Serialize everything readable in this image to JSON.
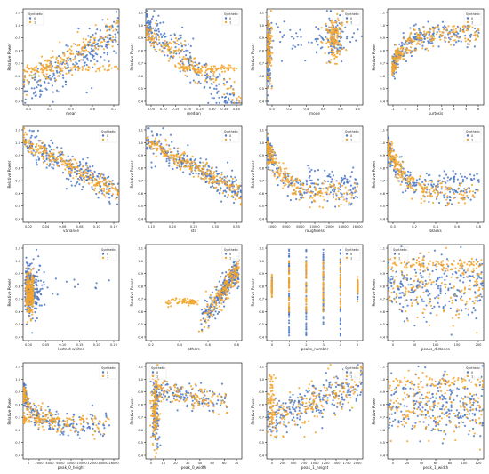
{
  "figure": {
    "colors": {
      "series_0": "#4c78c4",
      "series_1": "#f3a52b"
    },
    "legend_title": "Synthetic",
    "legend_labels": [
      "0",
      "1"
    ],
    "ylabel": "Relative Power"
  },
  "chart_data": [
    {
      "type": "scatter",
      "xlabel": "mean",
      "xticks": [
        "0.3",
        "0.4",
        "0.5",
        "0.6",
        "0.7"
      ],
      "yticks": [
        "0.4",
        "0.5",
        "0.6",
        "0.7",
        "0.8",
        "0.9",
        "1.0",
        "1.1"
      ],
      "xlim": [
        0.25,
        0.75
      ],
      "ylim": [
        0.4,
        1.15
      ],
      "legend": "top-left",
      "pattern": "rising"
    },
    {
      "type": "scatter",
      "xlabel": "median",
      "xticks": [
        "0.05",
        "0.10",
        "0.15",
        "0.20",
        "0.25",
        "0.30",
        "0.35",
        "0.40"
      ],
      "yticks": [
        "0.4",
        "0.5",
        "0.6",
        "0.7",
        "0.8",
        "0.9",
        "1.0",
        "1.1"
      ],
      "xlim": [
        0.03,
        0.42
      ],
      "ylim": [
        0.4,
        1.15
      ],
      "legend": "top-right",
      "pattern": "falling-flat"
    },
    {
      "type": "scatter",
      "xlabel": "mode",
      "xticks": [
        "0.0",
        "0.2",
        "0.4",
        "0.6",
        "0.8",
        "1.0"
      ],
      "yticks": [
        "0.4",
        "0.5",
        "0.6",
        "0.7",
        "0.8",
        "0.9",
        "1.0",
        "1.1"
      ],
      "xlim": [
        -0.05,
        1.05
      ],
      "ylim": [
        0.4,
        1.15
      ],
      "legend": "top-right",
      "pattern": "two-clusters"
    },
    {
      "type": "scatter",
      "xlabel": "kurtosis",
      "xticks": [
        "-1",
        "0",
        "1",
        "2",
        "3",
        "4",
        "5",
        "6"
      ],
      "yticks": [
        "0.4",
        "0.5",
        "0.6",
        "0.7",
        "0.8",
        "0.9",
        "1.0",
        "1.1"
      ],
      "xlim": [
        -1.5,
        6.5
      ],
      "ylim": [
        0.4,
        1.15
      ],
      "legend": "top-right",
      "pattern": "saturating"
    },
    {
      "type": "scatter",
      "xlabel": "variance",
      "xticks": [
        "0.02",
        "0.04",
        "0.06",
        "0.08",
        "0.10",
        "0.12"
      ],
      "yticks": [
        "0.4",
        "0.5",
        "0.6",
        "0.7",
        "0.8",
        "0.9",
        "1.0",
        "1.1"
      ],
      "xlim": [
        0.015,
        0.135
      ],
      "ylim": [
        0.4,
        1.15
      ],
      "legend": "top-right",
      "pattern": "falling"
    },
    {
      "type": "scatter",
      "xlabel": "std",
      "xticks": [
        "0.15",
        "0.20",
        "0.25",
        "0.30",
        "0.35"
      ],
      "yticks": [
        "0.4",
        "0.5",
        "0.6",
        "0.7",
        "0.8",
        "0.9",
        "1.0",
        "1.1"
      ],
      "xlim": [
        0.13,
        0.37
      ],
      "ylim": [
        0.4,
        1.15
      ],
      "legend": "top-right",
      "pattern": "falling"
    },
    {
      "type": "scatter",
      "xlabel": "roughness",
      "xticks": [
        "4000",
        "6000",
        "8000",
        "10000",
        "12000",
        "14000",
        "16000"
      ],
      "yticks": [
        "0.4",
        "0.5",
        "0.6",
        "0.7",
        "0.8",
        "0.9",
        "1.0",
        "1.1"
      ],
      "xlim": [
        3000,
        17000
      ],
      "ylim": [
        0.4,
        1.15
      ],
      "legend": "top-right",
      "pattern": "decay"
    },
    {
      "type": "scatter",
      "xlabel": "blacks",
      "xticks": [
        "0.0",
        "0.2",
        "0.4",
        "0.6",
        "0.8"
      ],
      "yticks": [
        "0.4",
        "0.5",
        "0.6",
        "0.7",
        "0.8",
        "0.9",
        "1.0",
        "1.1"
      ],
      "xlim": [
        -0.05,
        0.9
      ],
      "ylim": [
        0.4,
        1.15
      ],
      "legend": "top-right",
      "pattern": "decay"
    },
    {
      "type": "scatter",
      "xlabel": "lostnet whites",
      "xticks": [
        "0.00",
        "0.05",
        "0.10",
        "0.15",
        "0.20",
        "0.25"
      ],
      "yticks": [
        "0.4",
        "0.5",
        "0.6",
        "0.7",
        "0.8",
        "0.9",
        "1.0",
        "1.1"
      ],
      "xlim": [
        -0.01,
        0.27
      ],
      "ylim": [
        0.4,
        1.15
      ],
      "legend": "top-right",
      "pattern": "cluster-left"
    },
    {
      "type": "scatter",
      "xlabel": "others",
      "xticks": [
        "0.2",
        "0.4",
        "0.6",
        "0.8"
      ],
      "yticks": [
        "0.4",
        "0.5",
        "0.6",
        "0.7",
        "0.8",
        "0.9",
        "1.0",
        "1.1"
      ],
      "xlim": [
        0.1,
        0.98
      ],
      "ylim": [
        0.4,
        1.15
      ],
      "legend": "top-right",
      "pattern": "rising-steep"
    },
    {
      "type": "scatter",
      "xlabel": "peaks_number",
      "xticks": [
        "0",
        "1",
        "2",
        "3",
        "4",
        "5"
      ],
      "yticks": [
        "0.4",
        "0.5",
        "0.6",
        "0.7",
        "0.8",
        "0.9",
        "1.0",
        "1.1"
      ],
      "xlim": [
        -0.3,
        5.3
      ],
      "ylim": [
        0.4,
        1.15
      ],
      "legend": "top-right",
      "pattern": "discrete"
    },
    {
      "type": "scatter",
      "xlabel": "peaks_distance",
      "xticks": [
        "0",
        "50",
        "100",
        "150",
        "200"
      ],
      "yticks": [
        "0.4",
        "0.5",
        "0.6",
        "0.7",
        "0.8",
        "0.9",
        "1.0",
        "1.1"
      ],
      "xlim": [
        -10,
        225
      ],
      "ylim": [
        0.4,
        1.15
      ],
      "legend": "top-left",
      "pattern": "blob"
    },
    {
      "type": "scatter",
      "xlabel": "peak_0_height",
      "xticks": [
        "0",
        "2000",
        "4000",
        "6000",
        "8000",
        "10000",
        "12000",
        "14000",
        "16000"
      ],
      "yticks": [
        "0.4",
        "0.5",
        "0.6",
        "0.7",
        "0.8",
        "0.9",
        "1.0",
        "1.1"
      ],
      "xlim": [
        -800,
        17000
      ],
      "ylim": [
        0.4,
        1.15
      ],
      "legend": "top-right",
      "pattern": "decay-flat"
    },
    {
      "type": "scatter",
      "xlabel": "peak_0_width",
      "xticks": [
        "0",
        "10",
        "20",
        "30",
        "40",
        "50",
        "60",
        "70"
      ],
      "yticks": [
        "0.4",
        "0.5",
        "0.6",
        "0.7",
        "0.8",
        "0.9",
        "1.0",
        "1.1"
      ],
      "xlim": [
        -3,
        75
      ],
      "ylim": [
        0.4,
        1.15
      ],
      "legend": "top-left",
      "pattern": "spike-left"
    },
    {
      "type": "scatter",
      "xlabel": "peak_1_height",
      "xticks": [
        "0",
        "250",
        "500",
        "750",
        "1000",
        "1250",
        "1500",
        "1750",
        "2000"
      ],
      "yticks": [
        "0.4",
        "0.5",
        "0.6",
        "0.7",
        "0.8",
        "0.9",
        "1.0",
        "1.1"
      ],
      "xlim": [
        -100,
        2100
      ],
      "ylim": [
        0.4,
        1.15
      ],
      "legend": "top-right",
      "pattern": "rising-slow"
    },
    {
      "type": "scatter",
      "xlabel": "peak_1_width",
      "xticks": [
        "0",
        "20",
        "40",
        "60",
        "80",
        "100",
        "120"
      ],
      "yticks": [
        "0.4",
        "0.5",
        "0.6",
        "0.7",
        "0.8",
        "0.9",
        "1.0",
        "1.1"
      ],
      "xlim": [
        -5,
        125
      ],
      "ylim": [
        0.4,
        1.15
      ],
      "legend": "top-right",
      "pattern": "blob"
    }
  ]
}
